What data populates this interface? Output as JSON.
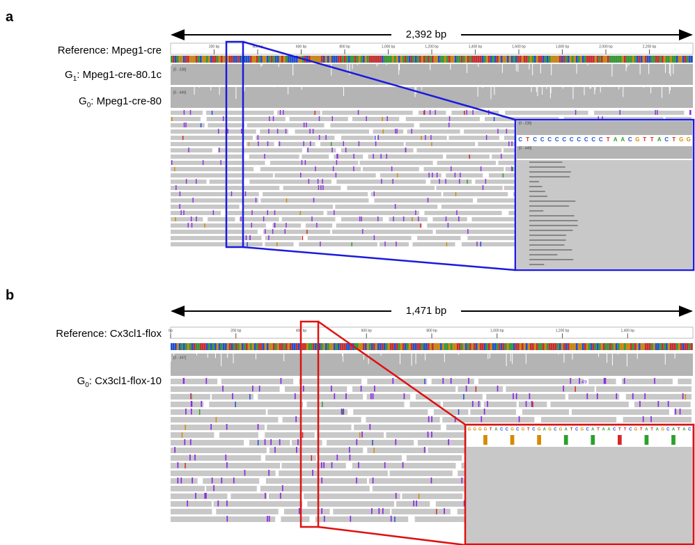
{
  "panels": [
    {
      "label": "a",
      "span": "2,392 bp",
      "tracks": [
        {
          "name": "Reference: Mpeg1-cre"
        },
        {
          "prefix": "G",
          "sub": "1",
          "rest": ": Mpeg1-cre-80.1c"
        },
        {
          "prefix": "G",
          "sub": "0",
          "rest": ": Mpeg1-cre-80"
        }
      ],
      "ruler": [
        "200 bp",
        "400 bp",
        "600 bp",
        "800 bp",
        "1,000 bp",
        "1,200 bp",
        "1,400 bp",
        "1,600 bp",
        "1,800 bp",
        "2,000 bp",
        "2,200 bp"
      ],
      "ranges": [
        "[0 - 238]",
        "[0 - 449]"
      ],
      "zoom_ranges": [
        "[0 - 238]",
        "[0 - 449]"
      ],
      "sequence": [
        "C",
        "T",
        "C",
        "C",
        "C",
        "C",
        "C",
        "C",
        "C",
        "C",
        "C",
        "C",
        "T",
        "A",
        "A",
        "C",
        "G",
        "T",
        "T",
        "A",
        "C",
        "T",
        "G",
        "G"
      ]
    },
    {
      "label": "b",
      "span": "1,471 bp",
      "tracks": [
        {
          "name": "Reference: Cx3cl1-flox"
        },
        {
          "prefix": "G",
          "sub": "0",
          "rest": ": Cx3cl1-flox-10"
        }
      ],
      "ruler": [
        "bp",
        "200 bp",
        "400 bp",
        "600 bp",
        "800 bp",
        "1,000 bp",
        "1,200 bp",
        "1,400 bp"
      ],
      "ranges": [
        "[0 - 347]"
      ],
      "read_count": "49",
      "sequence": [
        "G",
        "G",
        "G",
        "G",
        "T",
        "A",
        "C",
        "C",
        "G",
        "C",
        "G",
        "T",
        "C",
        "G",
        "A",
        "G",
        "C",
        "G",
        "A",
        "T",
        "C",
        "G",
        "C",
        "A",
        "T",
        "A",
        "A",
        "C",
        "T",
        "T",
        "C",
        "G",
        "T",
        "A",
        "T",
        "A",
        "G",
        "C",
        "A",
        "T",
        "A",
        "C"
      ]
    }
  ]
}
